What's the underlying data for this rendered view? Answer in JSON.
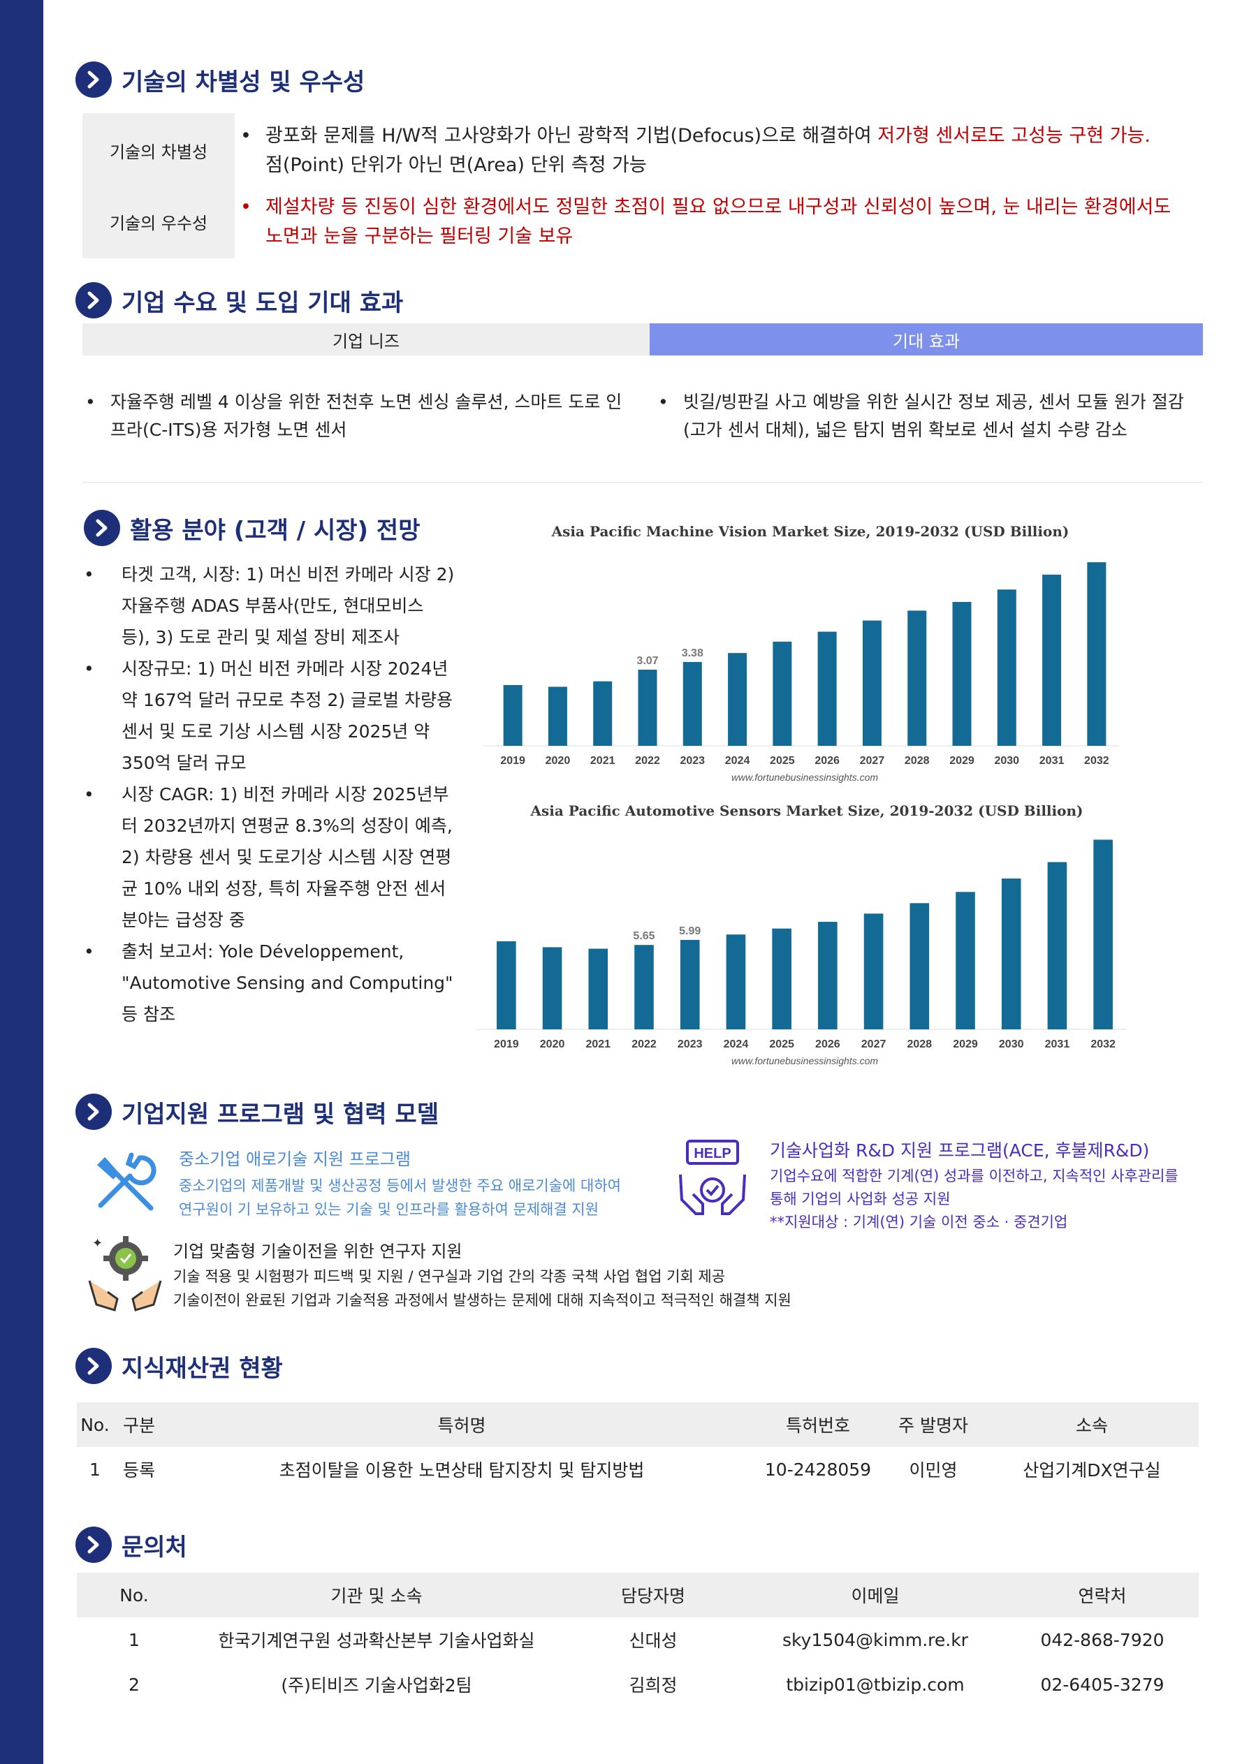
{
  "sections": {
    "s1": "기술의 차별성 및 우수성",
    "s2": "기업 수요 및 도입 기대 효과",
    "s3": "활용 분야 (고객 / 시장)  전망",
    "s4": "기업지원 프로그램 및 협력 모델",
    "s5": "지식재산권 현황",
    "s6": "문의처"
  },
  "tech": {
    "diff_label": "기술의 차별성",
    "sup_label": "기술의 우수성",
    "bullet": "•",
    "diff_line1_plain": "광포화 문제를 H/W적 고사양화가 아닌 광학적 기법(Defocus)으로 해결하여 ",
    "diff_line1_red": "저가형 센서로도 고성능 구현 가능.",
    "diff_line2": "점(Point) 단위가 아닌 면(Area) 단위 측정 가능",
    "sup_line1": "제설차량 등 진동이 심한 환경에서도 정밀한 초점이 필요 없으므로 내구성과 신뢰성이 높으며, 눈 내리는 환경에서도",
    "sup_line2": "노면과 눈을 구분하는 필터링 기술 보유"
  },
  "demand": {
    "needs_header": "기업 니즈",
    "effect_header": "기대 효과",
    "needs_text": "자율주행 레벨 4 이상을 위한 전천후 노면 센싱 솔루션, 스마트 도로 인프라(C-ITS)용 저가형 노면 센서",
    "effect_text": "빗길/빙판길 사고 예방을 위한 실시간 정보 제공, 센서 모듈 원가 절감(고가 센서 대체), 넓은 탐지 범위 확보로 센서 설치 수량 감소"
  },
  "market": {
    "items": [
      "타겟 고객, 시장: 1) 머신 비전 카메라 시장 2) 자율주행 ADAS 부품사(만도, 현대모비스 등), 3) 도로 관리 및 제설 장비 제조사",
      "시장규모: 1) 머신 비전 카메라 시장 2024년 약 167억 달러 규모로 추정 2) 글로벌 차량용 센서 및 도로 기상 시스템 시장 2025년 약 350억 달러 규모",
      "시장 CAGR: 1) 비전 카메라 시장 2025년부터 2032년까지 연평균 8.3%의 성장이 예측, 2) 차량용 센서 및 도로기상 시스템 시장 연평균 10% 내외 성장, 특히 자율주행 안전 센서 분야는 급성장 중",
      "출처 보고서: Yole Développement, \"Automotive Sensing and Computing\" 등 참조"
    ]
  },
  "chart_data": [
    {
      "type": "bar",
      "title": "Asia Pacific Machine Vision Market Size, 2019-2032 (USD Billion)",
      "categories": [
        "2019",
        "2020",
        "2021",
        "2022",
        "2023",
        "2024",
        "2025",
        "2026",
        "2027",
        "2028",
        "2029",
        "2030",
        "2031",
        "2032"
      ],
      "values": [
        2.45,
        2.38,
        2.6,
        3.07,
        3.38,
        3.74,
        4.2,
        4.6,
        5.05,
        5.45,
        5.8,
        6.3,
        6.9,
        7.4
      ],
      "data_labels": {
        "3": "3.07",
        "4": "3.38"
      },
      "ylim": [
        0,
        7.6
      ],
      "source": "www.fortunebusinessinsights.com",
      "color": "#136a94"
    },
    {
      "type": "bar",
      "title": "Asia Pacific Automotive Sensors Market Size, 2019-2032 (USD Billion)",
      "categories": [
        "2019",
        "2020",
        "2021",
        "2022",
        "2023",
        "2024",
        "2025",
        "2026",
        "2027",
        "2028",
        "2029",
        "2030",
        "2031",
        "2032"
      ],
      "values": [
        5.9,
        5.5,
        5.4,
        5.65,
        5.99,
        6.35,
        6.75,
        7.2,
        7.75,
        8.45,
        9.2,
        10.1,
        11.2,
        12.7
      ],
      "data_labels": {
        "3": "5.65",
        "4": "5.99"
      },
      "ylim": [
        0,
        13.0
      ],
      "source": "www.fortunebusinessinsights.com",
      "color": "#136a94"
    }
  ],
  "programs": {
    "p1_title": "중소기업 애로기술 지원 프로그램",
    "p1_desc1": "중소기업의 제품개발 및 생산공정 등에서 발생한 주요 애로기술에 대하여",
    "p1_desc2": "연구원이 기 보유하고 있는 기술 및 인프라를 활용하여 문제해결 지원",
    "p2_title": "기술사업화 R&D 지원 프로그램(ACE, 후불제R&D)",
    "p2_desc1": "기업수요에 적합한 기계(연) 성과를 이전하고, 지속적인 사후관리를",
    "p2_desc2": "통해 기업의 사업화 성공 지원",
    "p2_desc3": "**지원대상 : 기계(연) 기술 이전 중소 · 중견기업",
    "help_text": "HELP",
    "p3_title": "기업 맞춤형 기술이전을 위한 연구자 지원",
    "p3_desc1": "기술 적용 및 시험평가 피드백 및 지원 / 연구실과 기업 간의 각종 국책 사업 협업 기회 제공",
    "p3_desc2": "기술이전이 완료된 기업과 기술적용 과정에서 발생하는 문제에 대해  지속적이고 적극적인 해결책 지원"
  },
  "ip_table": {
    "headers": [
      "No.",
      "구분",
      "특허명",
      "특허번호",
      "주 발명자",
      "소속"
    ],
    "rows": [
      [
        "1",
        "등록",
        "초점이탈을 이용한 노면상태 탐지장치 및 탐지방법",
        "10-2428059",
        "이민영",
        "산업기계DX연구실"
      ]
    ]
  },
  "contact_table": {
    "headers": [
      "No.",
      "기관 및 소속",
      "담당자명",
      "이메일",
      "연락처"
    ],
    "rows": [
      [
        "1",
        "한국기계연구원 성과확산본부 기술사업화실",
        "신대성",
        "sky1504@kimm.re.kr",
        "042-868-7920"
      ],
      [
        "2",
        "(주)티비즈 기술사업화2팀",
        "김희정",
        "tbizip01@tbizip.com",
        "02-6405-3279"
      ]
    ]
  }
}
